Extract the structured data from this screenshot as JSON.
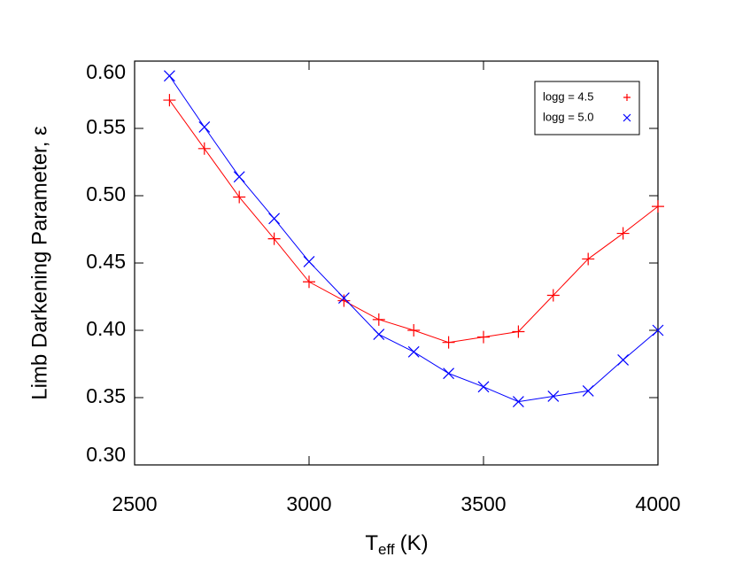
{
  "chart_data": {
    "type": "line",
    "x_label": {
      "symbol": "T",
      "subscript": "eff",
      "unit": "(K)"
    },
    "y_label": "Limb Darkening Parameter, ε",
    "x": [
      2600,
      2700,
      2800,
      2900,
      3000,
      3100,
      3200,
      3300,
      3400,
      3500,
      3600,
      3700,
      3800,
      3900,
      4000
    ],
    "series": [
      {
        "name": "logg = 4.5",
        "color": "#ff0000",
        "marker": "plus",
        "values": [
          0.571,
          0.535,
          0.499,
          0.468,
          0.436,
          0.422,
          0.408,
          0.4,
          0.391,
          0.395,
          0.399,
          0.426,
          0.453,
          0.472,
          0.492
        ]
      },
      {
        "name": "logg = 5.0",
        "color": "#0000ff",
        "marker": "cross",
        "values": [
          0.589,
          0.551,
          0.514,
          0.483,
          0.451,
          0.424,
          0.397,
          0.384,
          0.368,
          0.358,
          0.347,
          0.351,
          0.355,
          0.378,
          0.4
        ]
      }
    ],
    "xlim": [
      2500,
      4000
    ],
    "xticks": [
      2500,
      3000,
      3500,
      4000
    ],
    "ylim": [
      0.3,
      0.6
    ],
    "yticks": [
      {
        "value": 0.3,
        "label": "0.30"
      },
      {
        "value": 0.35,
        "label": "0.35"
      },
      {
        "value": 0.4,
        "label": "0.40"
      },
      {
        "value": 0.45,
        "label": "0.45"
      },
      {
        "value": 0.5,
        "label": "0.50"
      },
      {
        "value": 0.55,
        "label": "0.55"
      },
      {
        "value": 0.6,
        "label": "0.60"
      }
    ],
    "legend": "upper right"
  }
}
